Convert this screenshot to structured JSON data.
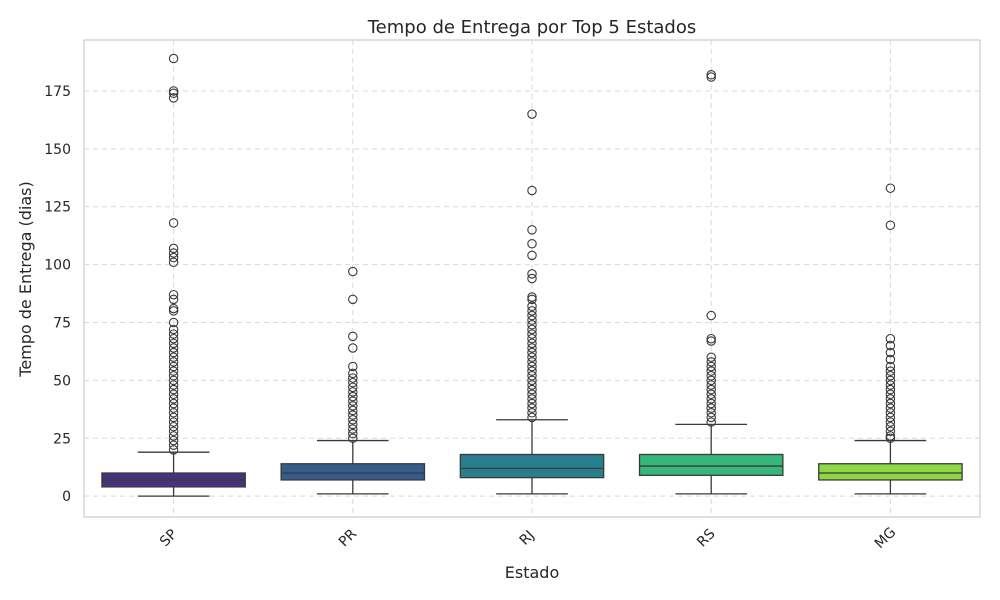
{
  "chart_data": {
    "type": "box",
    "title": "Tempo de Entrega por Top 5 Estados",
    "xlabel": "Estado",
    "ylabel": "Tempo de Entrega (dias)",
    "ylim": [
      -9,
      197
    ],
    "yticks": [
      0,
      25,
      50,
      75,
      100,
      125,
      150,
      175
    ],
    "grid": true,
    "categories": [
      "SP",
      "PR",
      "RJ",
      "RS",
      "MG"
    ],
    "colors": [
      "#46327e",
      "#365c8d",
      "#277f8e",
      "#35b779",
      "#8fd744"
    ],
    "boxes": [
      {
        "category": "SP",
        "whisker_low": 0,
        "q1": 4,
        "median": 7,
        "q3": 10,
        "whisker_high": 19,
        "outliers": [
          189,
          175,
          174,
          172,
          118,
          107,
          105,
          103,
          101,
          87,
          85,
          81,
          80,
          75,
          72,
          70,
          68,
          66,
          64,
          62,
          60,
          58,
          56,
          54,
          52,
          50,
          48,
          46,
          44,
          42,
          40,
          38,
          36,
          34,
          32,
          30,
          28,
          26,
          24,
          22,
          20
        ]
      },
      {
        "category": "PR",
        "whisker_low": 1,
        "q1": 7,
        "median": 10,
        "q3": 14,
        "whisker_high": 24,
        "outliers": [
          97,
          85,
          69,
          64,
          56,
          53,
          51,
          49,
          47,
          45,
          43,
          41,
          39,
          37,
          35,
          33,
          31,
          29,
          27,
          25
        ]
      },
      {
        "category": "RJ",
        "whisker_low": 1,
        "q1": 8,
        "median": 12,
        "q3": 18,
        "whisker_high": 33,
        "outliers": [
          165,
          132,
          115,
          109,
          104,
          96,
          94,
          86,
          85,
          82,
          80,
          78,
          76,
          74,
          72,
          70,
          68,
          66,
          64,
          62,
          60,
          58,
          56,
          54,
          52,
          50,
          48,
          46,
          44,
          42,
          40,
          38,
          36,
          34
        ]
      },
      {
        "category": "RS",
        "whisker_low": 1,
        "q1": 9,
        "median": 13,
        "q3": 18,
        "whisker_high": 31,
        "outliers": [
          182,
          181,
          78,
          68,
          67,
          60,
          58,
          56,
          54,
          52,
          50,
          48,
          46,
          44,
          42,
          40,
          38,
          36,
          34,
          32
        ]
      },
      {
        "category": "MG",
        "whisker_low": 1,
        "q1": 7,
        "median": 10,
        "q3": 14,
        "whisker_high": 24,
        "outliers": [
          133,
          117,
          68,
          65,
          62,
          59,
          56,
          54,
          52,
          50,
          48,
          46,
          44,
          42,
          40,
          38,
          36,
          34,
          32,
          30,
          28,
          26,
          25
        ]
      }
    ]
  }
}
